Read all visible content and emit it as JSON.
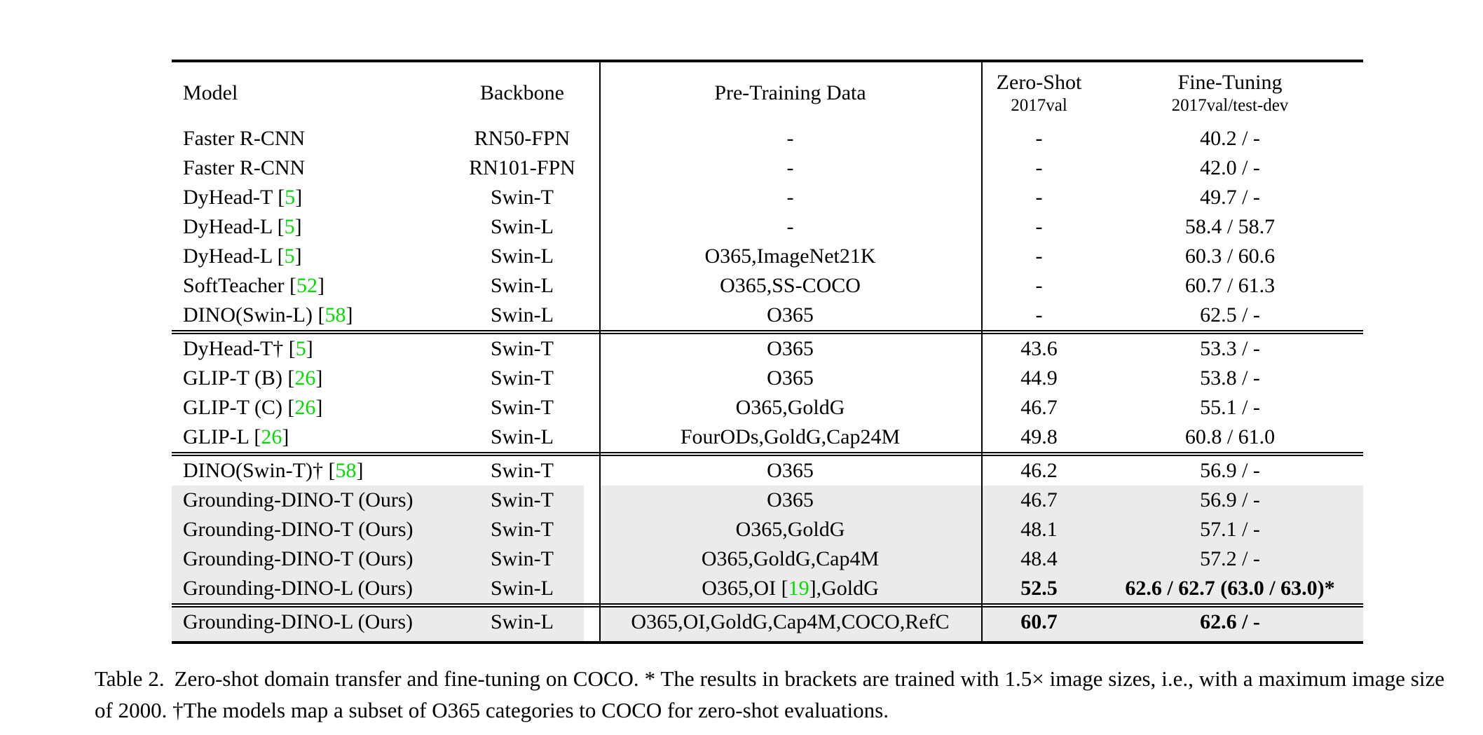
{
  "table": {
    "columns": [
      {
        "label": "Model"
      },
      {
        "label": "Backbone"
      },
      {
        "label": "Pre-Training Data"
      },
      {
        "label": "Zero-Shot",
        "sublabel": "2017val"
      },
      {
        "label": "Fine-Tuning",
        "sublabel": "2017val/test-dev"
      }
    ],
    "colors": {
      "highlight_row_bg": "#ebebeb",
      "citation_green": "#00dd00",
      "rule_black": "#000000"
    },
    "sections": [
      {
        "rows": [
          {
            "model": "Faster R-CNN",
            "backbone": "RN50-FPN",
            "pretrain": "-",
            "zeroshot": "-",
            "finetune": "40.2 / -",
            "highlight": false,
            "bold": false
          },
          {
            "model": "Faster R-CNN",
            "backbone": "RN101-FPN",
            "pretrain": "-",
            "zeroshot": "-",
            "finetune": "42.0 / -",
            "highlight": false,
            "bold": false
          },
          {
            "model": "DyHead-T [5]",
            "backbone": "Swin-T",
            "pretrain": "-",
            "zeroshot": "-",
            "finetune": "49.7 / -",
            "highlight": false,
            "bold": false
          },
          {
            "model": "DyHead-L [5]",
            "backbone": "Swin-L",
            "pretrain": "-",
            "zeroshot": "-",
            "finetune": "58.4 / 58.7",
            "highlight": false,
            "bold": false
          },
          {
            "model": "DyHead-L [5]",
            "backbone": "Swin-L",
            "pretrain": "O365,ImageNet21K",
            "zeroshot": "-",
            "finetune": "60.3 / 60.6",
            "highlight": false,
            "bold": false
          },
          {
            "model": "SoftTeacher [52]",
            "backbone": "Swin-L",
            "pretrain": "O365,SS-COCO",
            "zeroshot": "-",
            "finetune": "60.7 / 61.3",
            "highlight": false,
            "bold": false
          },
          {
            "model": "DINO(Swin-L) [58]",
            "backbone": "Swin-L",
            "pretrain": "O365",
            "zeroshot": "-",
            "finetune": "62.5 / -",
            "highlight": false,
            "bold": false
          }
        ]
      },
      {
        "rows": [
          {
            "model": "DyHead-T† [5]",
            "backbone": "Swin-T",
            "pretrain": "O365",
            "zeroshot": "43.6",
            "finetune": "53.3 / -",
            "highlight": false,
            "bold": false
          },
          {
            "model": "GLIP-T (B) [26]",
            "backbone": "Swin-T",
            "pretrain": "O365",
            "zeroshot": "44.9",
            "finetune": "53.8 / -",
            "highlight": false,
            "bold": false
          },
          {
            "model": "GLIP-T (C) [26]",
            "backbone": "Swin-T",
            "pretrain": "O365,GoldG",
            "zeroshot": "46.7",
            "finetune": "55.1 / -",
            "highlight": false,
            "bold": false
          },
          {
            "model": "GLIP-L [26]",
            "backbone": "Swin-L",
            "pretrain": "FourODs,GoldG,Cap24M",
            "zeroshot": "49.8",
            "finetune": "60.8 / 61.0",
            "highlight": false,
            "bold": false
          }
        ]
      },
      {
        "rows": [
          {
            "model": "DINO(Swin-T)† [58]",
            "backbone": "Swin-T",
            "pretrain": "O365",
            "zeroshot": "46.2",
            "finetune": "56.9 / -",
            "highlight": false,
            "bold": false
          },
          {
            "model": "Grounding-DINO-T (Ours)",
            "backbone": "Swin-T",
            "pretrain": "O365",
            "zeroshot": "46.7",
            "finetune": "56.9 / -",
            "highlight": true,
            "bold": false
          },
          {
            "model": "Grounding-DINO-T (Ours)",
            "backbone": "Swin-T",
            "pretrain": "O365,GoldG",
            "zeroshot": "48.1",
            "finetune": "57.1 / -",
            "highlight": true,
            "bold": false
          },
          {
            "model": "Grounding-DINO-T (Ours)",
            "backbone": "Swin-T",
            "pretrain": "O365,GoldG,Cap4M",
            "zeroshot": "48.4",
            "finetune": "57.2 / -",
            "highlight": true,
            "bold": false
          },
          {
            "model": "Grounding-DINO-L (Ours)",
            "backbone": "Swin-L",
            "pretrain": "O365,OI [19],GoldG",
            "zeroshot": "52.5",
            "finetune": "62.6 / 62.7 (63.0 / 63.0)*",
            "highlight": true,
            "bold": true
          }
        ]
      },
      {
        "rows": [
          {
            "model": "Grounding-DINO-L (Ours)",
            "backbone": "Swin-L",
            "pretrain": "O365,OI,GoldG,Cap4M,COCO,RefC",
            "zeroshot": "60.7",
            "finetune": "62.6 / -",
            "highlight": true,
            "bold": true
          }
        ]
      }
    ]
  },
  "caption": {
    "label": "Table 2.",
    "text": "Zero-shot domain transfer and fine-tuning on COCO. * The results in brackets are trained with 1.5× image sizes, i.e., with a maximum image size of 2000. †The models map a subset of O365 categories to COCO for zero-shot evaluations."
  }
}
